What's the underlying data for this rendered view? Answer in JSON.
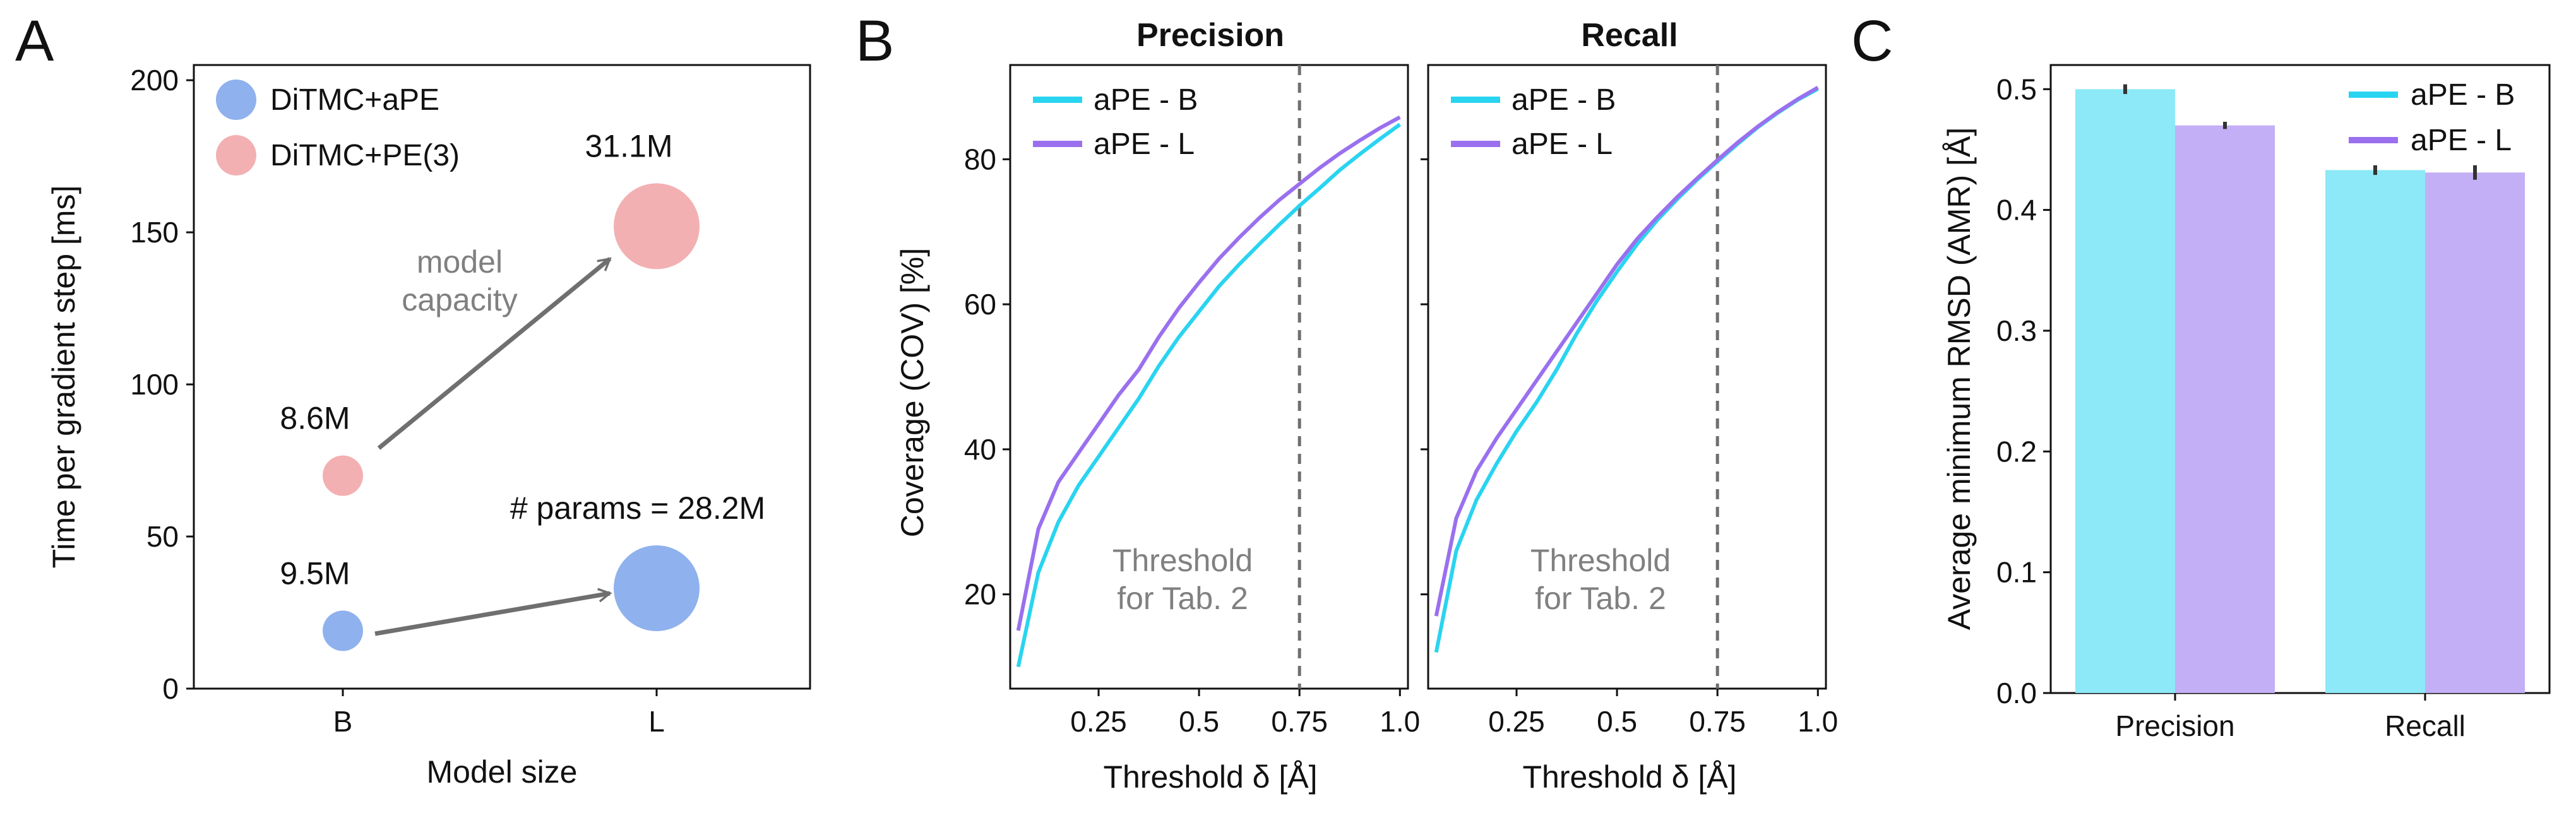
{
  "panels": {
    "a": "A",
    "b": "B",
    "c": "C"
  },
  "colors": {
    "cyan": "#29d4f0",
    "purple": "#9a70ee",
    "bar_cyan": "#8de8f7",
    "bar_purple": "#c3aff5",
    "blue_bubble": "#8fb1ee",
    "pink_bubble": "#f3b0b2",
    "arrow": "#6f6f6f",
    "dashed": "#6f6f6f"
  },
  "panel_a": {
    "xlabel": "Model size",
    "ylabel": "Time per gradient step [ms]",
    "legend": [
      "DiTMC+aPE",
      "DiTMC+PE(3)"
    ],
    "arrow_label_line1": "model",
    "arrow_label_line2": "capacity",
    "params_prefix": "# params = "
  },
  "panel_b": {
    "ylabel": "Coverage (COV) [%]",
    "xlabel": "Threshold δ [Å]",
    "threshold_line1": "Threshold",
    "threshold_line2": "for Tab. 2"
  },
  "chart_data": [
    {
      "type": "scatter",
      "panel": "A",
      "xlabel": "Model size",
      "ylabel": "Time per gradient step [ms]",
      "categories": [
        "B",
        "L"
      ],
      "ylim": [
        0,
        205
      ],
      "yticks": [
        0,
        50,
        100,
        150,
        200
      ],
      "series": [
        {
          "name": "DiTMC+aPE",
          "points": [
            {
              "x": "B",
              "y": 19,
              "params": "9.5M"
            },
            {
              "x": "L",
              "y": 33,
              "params": "28.2M"
            }
          ]
        },
        {
          "name": "DiTMC+PE(3)",
          "points": [
            {
              "x": "B",
              "y": 70,
              "params": "8.6M"
            },
            {
              "x": "L",
              "y": 152,
              "params": "31.1M"
            }
          ]
        }
      ],
      "annotations": [
        "model capacity",
        "# params = 28.2M"
      ]
    },
    {
      "type": "line",
      "panel": "B",
      "title": "Precision",
      "xlabel": "Threshold δ [Å]",
      "ylabel": "Coverage (COV) [%]",
      "xlim": [
        0.03,
        1.02
      ],
      "ylim": [
        7,
        93
      ],
      "xticks": [
        0.25,
        0.5,
        0.75,
        1.0
      ],
      "xtick_labels": [
        "0.25",
        "0.5",
        "0.75",
        "1.0"
      ],
      "yticks": [
        20,
        40,
        60,
        80
      ],
      "threshold": 0.75,
      "x": [
        0.05,
        0.1,
        0.15,
        0.2,
        0.25,
        0.3,
        0.35,
        0.4,
        0.45,
        0.5,
        0.55,
        0.6,
        0.65,
        0.7,
        0.75,
        0.8,
        0.85,
        0.9,
        0.95,
        1.0
      ],
      "series": [
        {
          "name": "aPE - B",
          "values": [
            10,
            23,
            30,
            35,
            39,
            43,
            47,
            51.5,
            55.5,
            59,
            62.5,
            65.5,
            68.3,
            71,
            73.6,
            76,
            78.5,
            80.7,
            82.8,
            84.8
          ]
        },
        {
          "name": "aPE - L",
          "values": [
            15,
            29,
            35.5,
            39.5,
            43.5,
            47.5,
            51,
            55.5,
            59.5,
            63,
            66.3,
            69.2,
            71.9,
            74.4,
            76.6,
            78.8,
            80.8,
            82.6,
            84.3,
            85.8
          ]
        }
      ]
    },
    {
      "type": "line",
      "panel": "B",
      "title": "Recall",
      "xlabel": "Threshold δ [Å]",
      "ylabel": "",
      "xlim": [
        0.03,
        1.02
      ],
      "ylim": [
        7,
        93
      ],
      "xticks": [
        0.25,
        0.5,
        0.75,
        1.0
      ],
      "xtick_labels": [
        "0.25",
        "0.5",
        "0.75",
        "1.0"
      ],
      "yticks": [
        20,
        40,
        60,
        80
      ],
      "threshold": 0.75,
      "x": [
        0.05,
        0.1,
        0.15,
        0.2,
        0.25,
        0.3,
        0.35,
        0.4,
        0.45,
        0.5,
        0.55,
        0.6,
        0.65,
        0.7,
        0.75,
        0.8,
        0.85,
        0.9,
        0.95,
        1.0
      ],
      "series": [
        {
          "name": "aPE - B",
          "values": [
            12,
            26,
            33,
            38,
            42.5,
            46.5,
            51,
            56,
            60.5,
            64.5,
            68.3,
            71.6,
            74.5,
            77.2,
            79.7,
            82.1,
            84.4,
            86.4,
            88.2,
            89.7
          ]
        },
        {
          "name": "aPE - L",
          "values": [
            17,
            30.5,
            37,
            41.5,
            45.5,
            49.5,
            53.5,
            57.5,
            61.5,
            65.5,
            69,
            72,
            74.8,
            77.4,
            79.9,
            82.3,
            84.5,
            86.5,
            88.3,
            89.9
          ]
        }
      ]
    },
    {
      "type": "bar",
      "panel": "C",
      "xlabel": "",
      "ylabel": "Average minimum RMSD (AMR) [Å]",
      "categories": [
        "Precision",
        "Recall"
      ],
      "ylim": [
        0,
        0.52
      ],
      "yticks": [
        0.0,
        0.1,
        0.2,
        0.3,
        0.4,
        0.5
      ],
      "ytick_labels": [
        "0.0",
        "0.1",
        "0.2",
        "0.3",
        "0.4",
        "0.5"
      ],
      "legend_position": "top-right",
      "series": [
        {
          "name": "aPE - B",
          "values": [
            0.5,
            0.433
          ],
          "errors": [
            0.004,
            0.004
          ]
        },
        {
          "name": "aPE - L",
          "values": [
            0.47,
            0.431
          ],
          "errors": [
            0.003,
            0.006
          ]
        }
      ]
    }
  ]
}
